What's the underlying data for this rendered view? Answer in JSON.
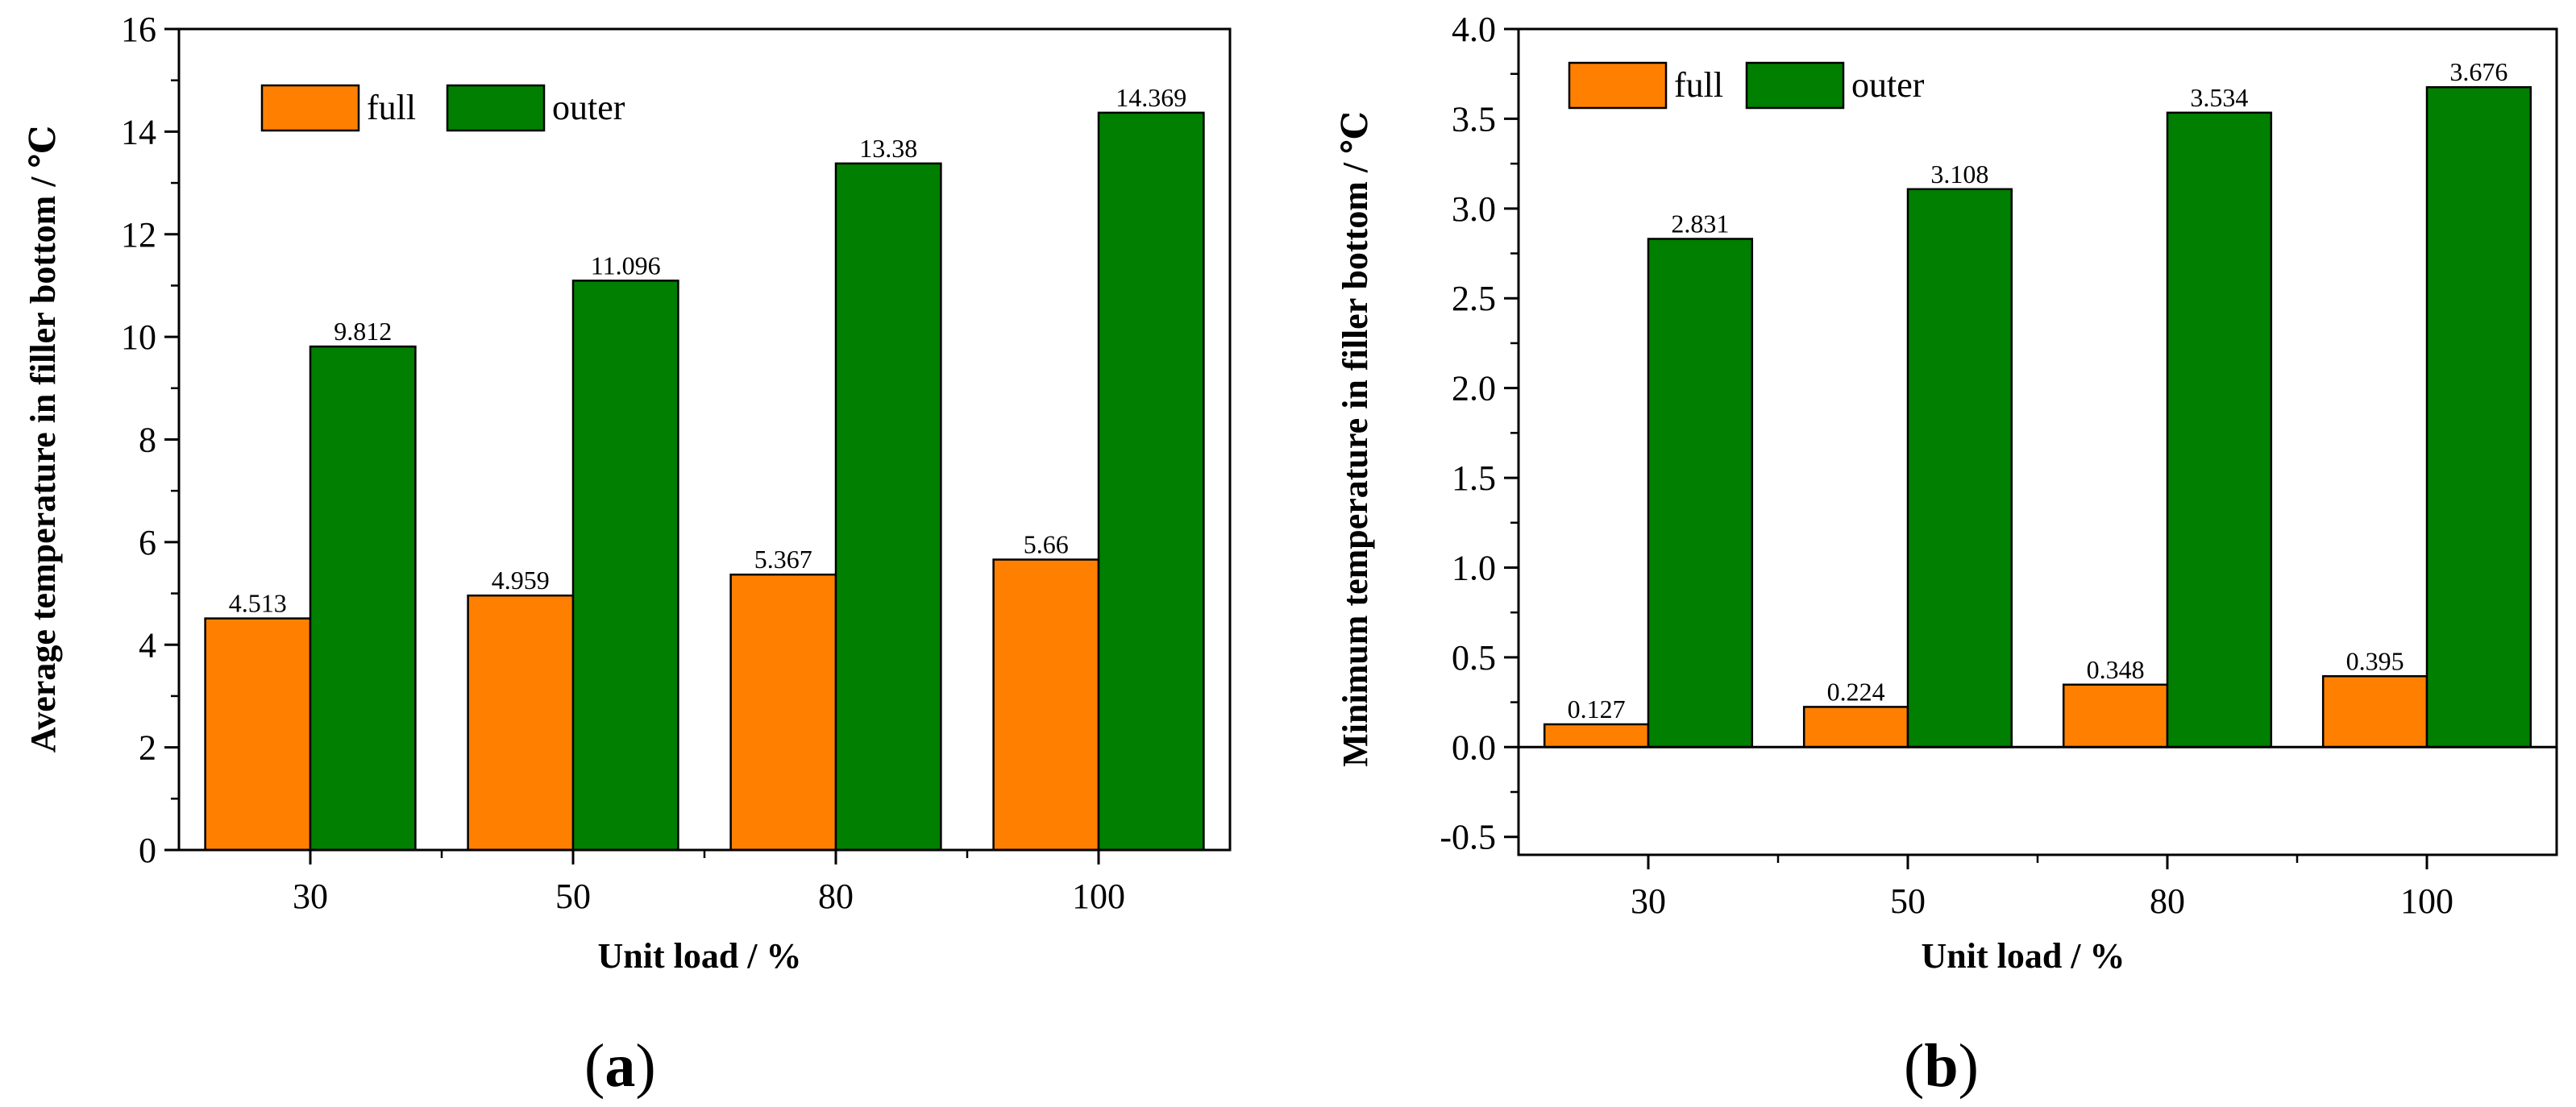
{
  "colors": {
    "full": "#FF8000",
    "outer": "#007F00",
    "axis": "#000000"
  },
  "chart_data": [
    {
      "type": "bar",
      "panel_label": "a",
      "xlabel": "Unit load / %",
      "ylabel": "Average temperature in filler bottom / ℃",
      "categories": [
        "30",
        "50",
        "80",
        "100"
      ],
      "ylim": [
        0,
        16
      ],
      "yticks": [
        "0",
        "2",
        "4",
        "6",
        "8",
        "10",
        "12",
        "14",
        "16"
      ],
      "legend_position": "top-left",
      "series": [
        {
          "name": "full",
          "values": [
            4.513,
            4.959,
            5.367,
            5.66
          ],
          "labels": [
            "4.513",
            "4.959",
            "5.367",
            "5.66"
          ]
        },
        {
          "name": "outer",
          "values": [
            9.812,
            11.096,
            13.38,
            14.369
          ],
          "labels": [
            "9.812",
            "11.096",
            "13.38",
            "14.369"
          ]
        }
      ]
    },
    {
      "type": "bar",
      "panel_label": "b",
      "xlabel": "Unit load / %",
      "ylabel": "Minimum temperature in filler bottom / ℃",
      "categories": [
        "30",
        "50",
        "80",
        "100"
      ],
      "ylim": [
        -0.6,
        4.0
      ],
      "yticks": [
        "-0.5",
        "0.0",
        "0.5",
        "1.0",
        "1.5",
        "2.0",
        "2.5",
        "3.0",
        "3.5",
        "4.0"
      ],
      "legend_position": "top-left",
      "series": [
        {
          "name": "full",
          "values": [
            0.127,
            0.224,
            0.348,
            0.395
          ],
          "labels": [
            "0.127",
            "0.224",
            "0.348",
            "0.395"
          ]
        },
        {
          "name": "outer",
          "values": [
            2.831,
            3.108,
            3.534,
            3.676
          ],
          "labels": [
            "2.831",
            "3.108",
            "3.534",
            "3.676"
          ]
        }
      ]
    }
  ]
}
